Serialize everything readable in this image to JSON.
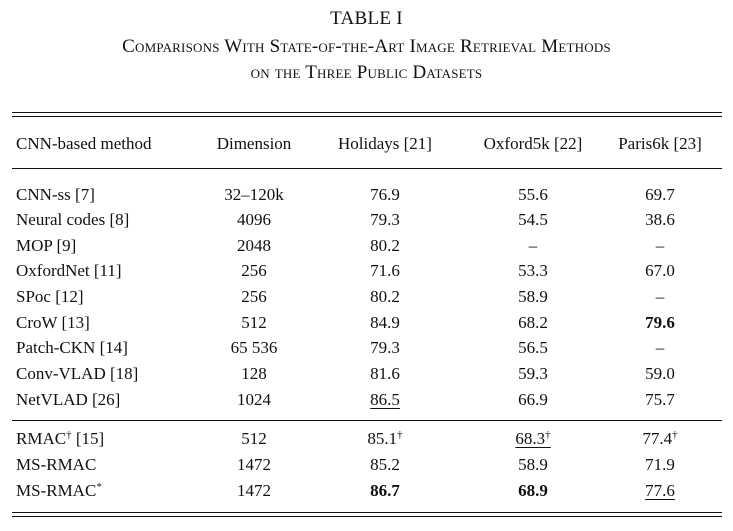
{
  "table": {
    "label": "TABLE I",
    "caption_line1": "Comparisons With State-of-the-Art Image Retrieval Methods",
    "caption_line2": "on the Three Public Datasets",
    "headers": [
      "CNN-based method",
      "Dimension",
      "Holidays [21]",
      "Oxford5k [22]",
      "Paris6k [23]"
    ],
    "group1": [
      {
        "method": "CNN-ss [7]",
        "dim": "32–120k",
        "holidays": "76.9",
        "oxford": "55.6",
        "paris": "69.7"
      },
      {
        "method": "Neural codes [8]",
        "dim": "4096",
        "holidays": "79.3",
        "oxford": "54.5",
        "paris": "38.6"
      },
      {
        "method": "MOP [9]",
        "dim": "2048",
        "holidays": "80.2",
        "oxford": "–",
        "paris": "–"
      },
      {
        "method": "OxfordNet [11]",
        "dim": "256",
        "holidays": "71.6",
        "oxford": "53.3",
        "paris": "67.0"
      },
      {
        "method": "SPoc [12]",
        "dim": "256",
        "holidays": "80.2",
        "oxford": "58.9",
        "paris": "–"
      },
      {
        "method": "CroW [13]",
        "dim": "512",
        "holidays": "84.9",
        "oxford": "68.2",
        "paris": "79.6"
      },
      {
        "method": "Patch-CKN [14]",
        "dim": "65 536",
        "holidays": "79.3",
        "oxford": "56.5",
        "paris": "–"
      },
      {
        "method": "Conv-VLAD [18]",
        "dim": "128",
        "holidays": "81.6",
        "oxford": "59.3",
        "paris": "59.0"
      },
      {
        "method": "NetVLAD [26]",
        "dim": "1024",
        "holidays": "86.5",
        "oxford": "66.9",
        "paris": "75.7"
      }
    ],
    "group2": [
      {
        "method": "RMAC",
        "method_sup": "†",
        "method_ref": " [15]",
        "dim": "512",
        "holidays": "85.1",
        "holidays_sup": "†",
        "oxford": "68.3",
        "oxford_sup": "†",
        "paris": "77.4",
        "paris_sup": "†"
      },
      {
        "method": "MS-RMAC",
        "dim": "1472",
        "holidays": "85.2",
        "oxford": "58.9",
        "paris": "71.9"
      },
      {
        "method": "MS-RMAC",
        "method_sup": "*",
        "dim": "1472",
        "holidays": "86.7",
        "oxford": "68.9",
        "paris": "77.6"
      }
    ]
  }
}
